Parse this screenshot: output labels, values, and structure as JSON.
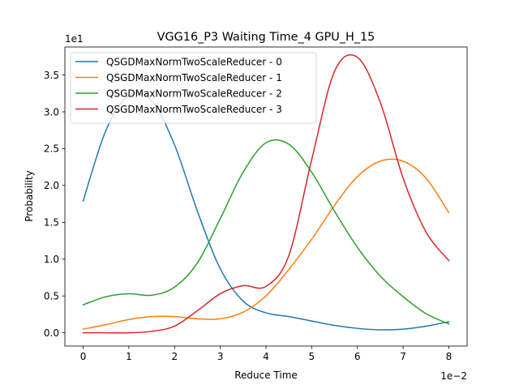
{
  "chart_data": {
    "type": "line",
    "title": "VGG16_P3 Waiting Time_4 GPU_H_15",
    "xlabel": "Reduce Time",
    "ylabel": "Probability",
    "x_offset_label": "1e−2",
    "y_offset_label": "1e1",
    "xlim": [
      -0.4,
      8.4
    ],
    "ylim": [
      -0.18,
      3.88
    ],
    "x_ticks": [
      0,
      1,
      2,
      3,
      4,
      5,
      6,
      7,
      8
    ],
    "y_ticks": [
      0.0,
      0.5,
      1.0,
      1.5,
      2.0,
      2.5,
      3.0,
      3.5
    ],
    "x_tick_labels": [
      "0",
      "1",
      "2",
      "3",
      "4",
      "5",
      "6",
      "7",
      "8"
    ],
    "y_tick_labels": [
      "0.0",
      "0.5",
      "1.0",
      "1.5",
      "2.0",
      "2.5",
      "3.0",
      "3.5"
    ],
    "legend_position": "top-left",
    "grid": false,
    "x": [
      0,
      0.5,
      1,
      1.5,
      2,
      2.5,
      3,
      3.5,
      4,
      4.5,
      5,
      5.5,
      6,
      6.5,
      7,
      7.5,
      8
    ],
    "series": [
      {
        "name": "QSGDMaxNormTwoScaleReducer - 0",
        "color": "#1f77b4",
        "values": [
          1.79,
          2.75,
          3.22,
          3.15,
          2.55,
          1.65,
          0.87,
          0.43,
          0.27,
          0.22,
          0.16,
          0.1,
          0.06,
          0.04,
          0.05,
          0.09,
          0.15
        ]
      },
      {
        "name": "QSGDMaxNormTwoScaleReducer - 1",
        "color": "#ff7f0e",
        "values": [
          0.05,
          0.11,
          0.18,
          0.22,
          0.22,
          0.19,
          0.19,
          0.28,
          0.5,
          0.86,
          1.27,
          1.73,
          2.12,
          2.33,
          2.33,
          2.1,
          1.63
        ]
      },
      {
        "name": "QSGDMaxNormTwoScaleReducer - 2",
        "color": "#2ca02c",
        "values": [
          0.38,
          0.49,
          0.53,
          0.51,
          0.62,
          0.95,
          1.55,
          2.18,
          2.58,
          2.56,
          2.18,
          1.65,
          1.16,
          0.77,
          0.49,
          0.26,
          0.12
        ]
      },
      {
        "name": "QSGDMaxNormTwoScaleReducer - 3",
        "color": "#d62728",
        "values": [
          0.0,
          0.0,
          0.0,
          0.02,
          0.09,
          0.3,
          0.53,
          0.64,
          0.63,
          1.05,
          2.35,
          3.55,
          3.74,
          3.13,
          2.1,
          1.37,
          0.98
        ]
      }
    ]
  }
}
